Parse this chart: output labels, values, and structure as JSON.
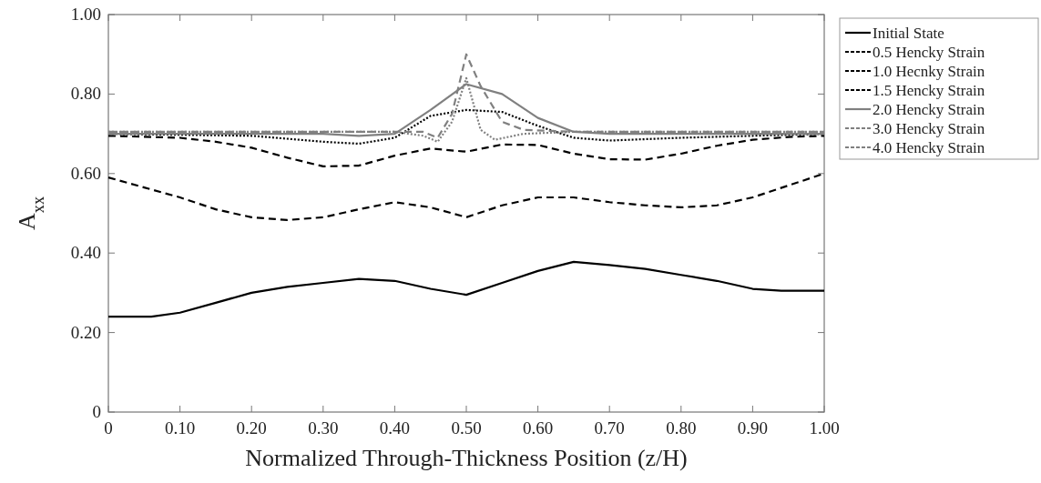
{
  "chart_data": {
    "type": "line",
    "xlabel": "Normalized Through-Thickness Position (z/H)",
    "ylabel": "A$_{xx}$",
    "xlim": [
      0,
      1
    ],
    "ylim": [
      0,
      1
    ],
    "xticks": [
      0,
      {
        "value": 0.1,
        "label": "0.10"
      },
      {
        "value": 0.2,
        "label": "0.20"
      },
      {
        "value": 0.3,
        "label": "0.30"
      },
      {
        "value": 0.4,
        "label": "0.40"
      },
      {
        "value": 0.5,
        "label": "0.50"
      },
      {
        "value": 0.6,
        "label": "0.60"
      },
      {
        "value": 0.7,
        "label": "0.70"
      },
      {
        "value": 0.8,
        "label": "0.80"
      },
      {
        "value": 0.9,
        "label": "0.90"
      },
      {
        "value": 1,
        "label": "1.00"
      }
    ],
    "yticks": [
      0,
      {
        "value": 0.2,
        "label": "0.20"
      },
      {
        "value": 0.4,
        "label": "0.40"
      },
      {
        "value": 0.6,
        "label": "0.60"
      },
      {
        "value": 0.8,
        "label": "0.80"
      },
      {
        "value": 1,
        "label": "1.00"
      }
    ],
    "grid": false,
    "legend": "top right",
    "marker": "none",
    "series": [
      {
        "name": "Initial State",
        "color": "#000000",
        "line_style": "solid",
        "x": [
          0,
          0.06,
          0.1,
          0.15,
          0.2,
          0.25,
          0.3,
          0.35,
          0.4,
          0.45,
          0.5,
          0.55,
          0.6,
          0.65,
          0.7,
          0.75,
          0.8,
          0.85,
          0.9,
          0.94,
          1
        ],
        "values": [
          0.24,
          0.24,
          0.25,
          0.275,
          0.3,
          0.315,
          0.325,
          0.335,
          0.33,
          0.31,
          0.295,
          0.325,
          0.355,
          0.378,
          0.37,
          0.36,
          0.345,
          0.33,
          0.31,
          0.305,
          0.305
        ]
      },
      {
        "name": "0.5 Hencky Strain",
        "color": "#000000",
        "line_style": "dashed",
        "x": [
          0,
          0.05,
          0.1,
          0.15,
          0.2,
          0.25,
          0.3,
          0.35,
          0.4,
          0.45,
          0.5,
          0.55,
          0.6,
          0.65,
          0.7,
          0.75,
          0.8,
          0.85,
          0.9,
          0.95,
          1
        ],
        "values": [
          0.59,
          0.565,
          0.54,
          0.51,
          0.49,
          0.483,
          0.49,
          0.51,
          0.528,
          0.515,
          0.49,
          0.52,
          0.54,
          0.54,
          0.528,
          0.52,
          0.515,
          0.52,
          0.54,
          0.57,
          0.6
        ]
      },
      {
        "name": "1.0 Hecnky Strain",
        "color": "#000000",
        "line_style": "dashed",
        "x": [
          0,
          0.1,
          0.15,
          0.2,
          0.25,
          0.3,
          0.35,
          0.4,
          0.45,
          0.5,
          0.55,
          0.6,
          0.65,
          0.7,
          0.75,
          0.8,
          0.85,
          0.9,
          0.95,
          1
        ],
        "values": [
          0.695,
          0.69,
          0.68,
          0.665,
          0.64,
          0.618,
          0.62,
          0.645,
          0.663,
          0.655,
          0.673,
          0.672,
          0.65,
          0.636,
          0.635,
          0.65,
          0.67,
          0.685,
          0.692,
          0.695
        ]
      },
      {
        "name": "1.5 Hencky Strain",
        "color": "#000000",
        "line_style": "dotted",
        "x": [
          0,
          0.2,
          0.3,
          0.35,
          0.4,
          0.45,
          0.5,
          0.55,
          0.6,
          0.65,
          0.7,
          0.8,
          0.9,
          1
        ],
        "values": [
          0.7,
          0.695,
          0.68,
          0.675,
          0.69,
          0.745,
          0.76,
          0.755,
          0.72,
          0.69,
          0.683,
          0.69,
          0.695,
          0.7
        ]
      },
      {
        "name": "2.0 Hencky Strain",
        "color": "#808080",
        "line_style": "solid",
        "x": [
          0,
          0.3,
          0.35,
          0.4,
          0.45,
          0.5,
          0.55,
          0.6,
          0.65,
          0.7,
          1
        ],
        "values": [
          0.7,
          0.7,
          0.695,
          0.7,
          0.76,
          0.825,
          0.8,
          0.74,
          0.705,
          0.7,
          0.7
        ]
      },
      {
        "name": "3.0 Hencky Strain",
        "color": "#808080",
        "line_style": "dashed",
        "x": [
          0,
          0.4,
          0.44,
          0.46,
          0.48,
          0.5,
          0.52,
          0.55,
          0.58,
          0.65,
          1
        ],
        "values": [
          0.705,
          0.705,
          0.705,
          0.69,
          0.75,
          0.9,
          0.82,
          0.73,
          0.71,
          0.705,
          0.705
        ]
      },
      {
        "name": "4.0 Hencky Strain",
        "color": "#808080",
        "line_style": "dotted",
        "x": [
          0,
          0.4,
          0.44,
          0.46,
          0.48,
          0.5,
          0.52,
          0.54,
          0.58,
          0.65,
          1
        ],
        "values": [
          0.705,
          0.705,
          0.695,
          0.68,
          0.73,
          0.84,
          0.71,
          0.685,
          0.7,
          0.705,
          0.705
        ]
      }
    ]
  }
}
